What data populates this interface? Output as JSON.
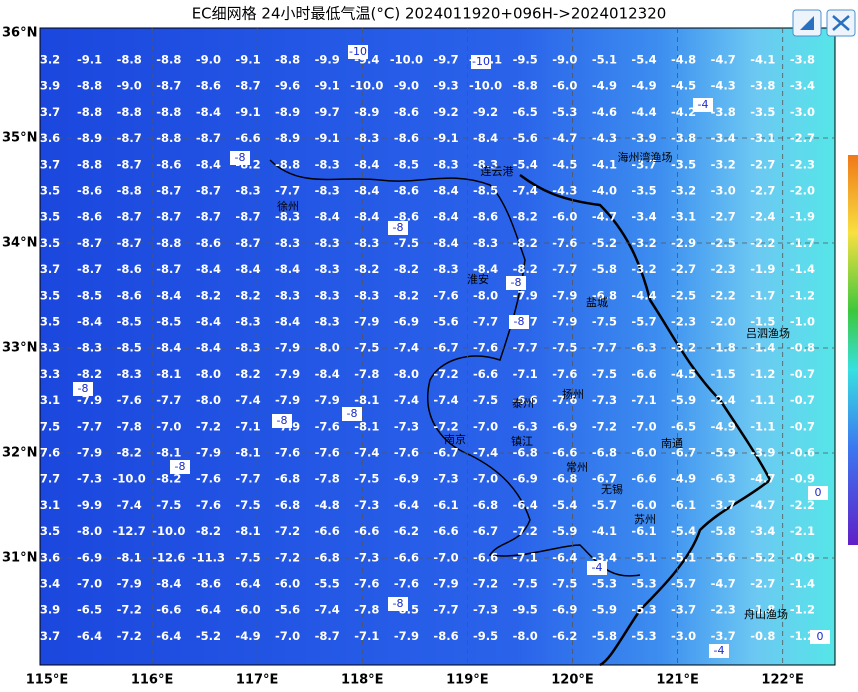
{
  "title": "EC细网格 24小时最低气温(°C) 2024011920+096H->2024012320",
  "lat_labels": [
    "36°N",
    "35°N",
    "34°N",
    "33°N",
    "32°N",
    "31°N"
  ],
  "lon_labels": [
    "115°E",
    "116°E",
    "117°E",
    "118°E",
    "119°E",
    "120°E",
    "121°E",
    "122°E"
  ],
  "grid_rows": [
    [
      "3.2",
      "-9.1",
      "-8.8",
      "-8.8",
      "-9.0",
      "-9.1",
      "-8.8",
      "-9.9",
      "-9.4",
      "-10.0",
      "-9.7",
      "-10.1",
      "-9.5",
      "-9.0",
      "-5.1",
      "-5.4",
      "-4.8",
      "-4.7",
      "-4.1",
      "-3.8"
    ],
    [
      "3.9",
      "-8.8",
      "-9.0",
      "-8.7",
      "-8.6",
      "-8.7",
      "-9.6",
      "-9.1",
      "-10.0",
      "-9.0",
      "-9.3",
      "-10.0",
      "-8.8",
      "-6.0",
      "-4.9",
      "-4.9",
      "-4.5",
      "-4.3",
      "-3.8",
      "-3.4"
    ],
    [
      "3.7",
      "-8.8",
      "-8.8",
      "-8.8",
      "-8.4",
      "-9.1",
      "-8.9",
      "-9.7",
      "-8.9",
      "-8.6",
      "-9.2",
      "-9.2",
      "-6.5",
      "-5.3",
      "-4.6",
      "-4.4",
      "-4.2",
      "-3.8",
      "-3.5",
      "-3.0"
    ],
    [
      "3.6",
      "-8.9",
      "-8.7",
      "-8.8",
      "-8.7",
      "-6.6",
      "-8.9",
      "-9.1",
      "-8.3",
      "-8.6",
      "-9.1",
      "-8.4",
      "-5.6",
      "-4.7",
      "-4.3",
      "-3.9",
      "-3.8",
      "-3.4",
      "-3.1",
      "-2.7"
    ],
    [
      "3.7",
      "-8.8",
      "-8.7",
      "-8.6",
      "-8.4",
      "-8.2",
      "-8.8",
      "-8.3",
      "-8.4",
      "-8.5",
      "-8.3",
      "-8.3",
      "-5.4",
      "-4.5",
      "-4.1",
      "-3.7",
      "-3.5",
      "-3.2",
      "-2.7",
      "-2.3"
    ],
    [
      "3.5",
      "-8.6",
      "-8.8",
      "-8.7",
      "-8.7",
      "-8.3",
      "-7.7",
      "-8.3",
      "-8.4",
      "-8.6",
      "-8.4",
      "-8.5",
      "-7.4",
      "-4.3",
      "-4.0",
      "-3.5",
      "-3.2",
      "-3.0",
      "-2.7",
      "-2.0"
    ],
    [
      "3.5",
      "-8.6",
      "-8.7",
      "-8.7",
      "-8.7",
      "-8.7",
      "-8.3",
      "-8.4",
      "-8.4",
      "-8.6",
      "-8.4",
      "-8.6",
      "-8.2",
      "-6.0",
      "-4.7",
      "-3.4",
      "-3.1",
      "-2.7",
      "-2.4",
      "-1.9"
    ],
    [
      "3.5",
      "-8.7",
      "-8.7",
      "-8.8",
      "-8.6",
      "-8.7",
      "-8.3",
      "-8.3",
      "-8.3",
      "-7.5",
      "-8.4",
      "-8.3",
      "-8.2",
      "-7.6",
      "-5.2",
      "-3.2",
      "-2.9",
      "-2.5",
      "-2.2",
      "-1.7"
    ],
    [
      "3.7",
      "-8.7",
      "-8.6",
      "-8.7",
      "-8.4",
      "-8.4",
      "-8.4",
      "-8.3",
      "-8.2",
      "-8.2",
      "-8.3",
      "-8.4",
      "-8.2",
      "-7.7",
      "-5.8",
      "-3.2",
      "-2.7",
      "-2.3",
      "-1.9",
      "-1.4"
    ],
    [
      "3.5",
      "-8.5",
      "-8.6",
      "-8.4",
      "-8.2",
      "-8.2",
      "-8.3",
      "-8.3",
      "-8.3",
      "-8.2",
      "-7.6",
      "-8.0",
      "-7.9",
      "-7.9",
      "-6.8",
      "-4.4",
      "-2.5",
      "-2.2",
      "-1.7",
      "-1.2"
    ],
    [
      "3.5",
      "-8.4",
      "-8.5",
      "-8.5",
      "-8.4",
      "-8.3",
      "-8.4",
      "-8.3",
      "-7.9",
      "-6.9",
      "-5.6",
      "-7.7",
      "-7.7",
      "-7.9",
      "-7.5",
      "-5.7",
      "-2.3",
      "-2.0",
      "-1.5",
      "-1.0"
    ],
    [
      "3.3",
      "-8.3",
      "-8.5",
      "-8.4",
      "-8.4",
      "-8.3",
      "-7.9",
      "-8.0",
      "-7.5",
      "-7.4",
      "-6.7",
      "-7.6",
      "-7.7",
      "-7.5",
      "-7.7",
      "-6.3",
      "-3.2",
      "-1.8",
      "-1.4",
      "-0.8"
    ],
    [
      "3.3",
      "-8.2",
      "-8.3",
      "-8.1",
      "-8.0",
      "-8.2",
      "-7.9",
      "-8.4",
      "-7.8",
      "-8.0",
      "-7.2",
      "-6.6",
      "-7.1",
      "-7.6",
      "-7.5",
      "-6.6",
      "-4.5",
      "-1.5",
      "-1.2",
      "-0.7"
    ],
    [
      "3.1",
      "-7.9",
      "-7.6",
      "-7.7",
      "-8.0",
      "-7.4",
      "-7.9",
      "-7.9",
      "-8.1",
      "-7.4",
      "-7.4",
      "-7.5",
      "-6.6",
      "-7.6",
      "-7.3",
      "-7.1",
      "-5.9",
      "-2.4",
      "-1.1",
      "-0.7"
    ],
    [
      "7.5",
      "-7.7",
      "-7.8",
      "-7.0",
      "-7.2",
      "-7.1",
      "-7.9",
      "-7.6",
      "-8.1",
      "-7.3",
      "-7.2",
      "-7.0",
      "-6.3",
      "-6.9",
      "-7.2",
      "-7.0",
      "-6.5",
      "-4.9",
      "-1.1",
      "-0.7"
    ],
    [
      "7.6",
      "-7.9",
      "-8.2",
      "-8.1",
      "-7.9",
      "-8.1",
      "-7.6",
      "-7.6",
      "-7.4",
      "-7.6",
      "-6.7",
      "-7.4",
      "-6.8",
      "-6.6",
      "-6.8",
      "-6.0",
      "-6.7",
      "-5.9",
      "-3.9",
      "-0.6"
    ],
    [
      "7.7",
      "-7.3",
      "-10.0",
      "-8.2",
      "-7.6",
      "-7.7",
      "-6.8",
      "-7.8",
      "-7.5",
      "-6.9",
      "-7.3",
      "-7.0",
      "-6.9",
      "-6.8",
      "-6.7",
      "-6.6",
      "-4.9",
      "-6.3",
      "-4.7",
      "-0.9"
    ],
    [
      "3.1",
      "-9.9",
      "-7.4",
      "-7.5",
      "-7.6",
      "-7.5",
      "-6.8",
      "-4.8",
      "-7.3",
      "-6.4",
      "-6.1",
      "-6.8",
      "-6.4",
      "-5.4",
      "-5.7",
      "-6.0",
      "-6.1",
      "-3.7",
      "-4.7",
      "-2.2"
    ],
    [
      "3.5",
      "-8.0",
      "-12.7",
      "-10.0",
      "-8.2",
      "-8.1",
      "-7.2",
      "-6.6",
      "-6.6",
      "-6.2",
      "-6.6",
      "-6.7",
      "-7.2",
      "-5.9",
      "-4.1",
      "-6.1",
      "-5.4",
      "-5.8",
      "-3.4",
      "-2.1"
    ],
    [
      "3.6",
      "-6.9",
      "-8.1",
      "-12.6",
      "-11.3",
      "-7.5",
      "-7.2",
      "-6.8",
      "-7.3",
      "-6.6",
      "-7.0",
      "-6.6",
      "-7.1",
      "-6.4",
      "-3.4",
      "-5.1",
      "-5.1",
      "-5.6",
      "-5.2",
      "-0.9"
    ],
    [
      "3.4",
      "-7.0",
      "-7.9",
      "-8.4",
      "-8.6",
      "-6.4",
      "-6.0",
      "-5.5",
      "-7.6",
      "-7.6",
      "-7.9",
      "-7.2",
      "-7.5",
      "-7.5",
      "-5.3",
      "-5.3",
      "-5.7",
      "-4.7",
      "-2.7",
      "-1.4"
    ],
    [
      "3.9",
      "-6.5",
      "-7.2",
      "-6.6",
      "-6.4",
      "-6.0",
      "-5.6",
      "-7.4",
      "-7.8",
      "-8.5",
      "-7.7",
      "-7.3",
      "-9.5",
      "-6.9",
      "-5.9",
      "-5.3",
      "-3.7",
      "-2.3",
      "-1.8",
      "-1.2"
    ],
    [
      "3.7",
      "-6.4",
      "-7.2",
      "-6.4",
      "-5.2",
      "-4.9",
      "-7.0",
      "-8.7",
      "-7.1",
      "-7.9",
      "-8.6",
      "-9.5",
      "-8.0",
      "-6.2",
      "-5.8",
      "-5.3",
      "-3.0",
      "-3.7",
      "-0.8",
      "-1.2"
    ]
  ],
  "places": [
    "连云港",
    "海州湾渔场",
    "徐州",
    "淮安",
    "盐城",
    "吕泗渔场",
    "扬州",
    "泰州",
    "南京",
    "镇江",
    "常州",
    "无锡",
    "苏州",
    "南通",
    "舟山渔场"
  ],
  "contour_labels": [
    "-10",
    "-10",
    "-4",
    "-8",
    "-8",
    "-8",
    "-8",
    "-8",
    "-8",
    "-8",
    "-8",
    "-4",
    "-8",
    "-4",
    "0",
    "0"
  ]
}
